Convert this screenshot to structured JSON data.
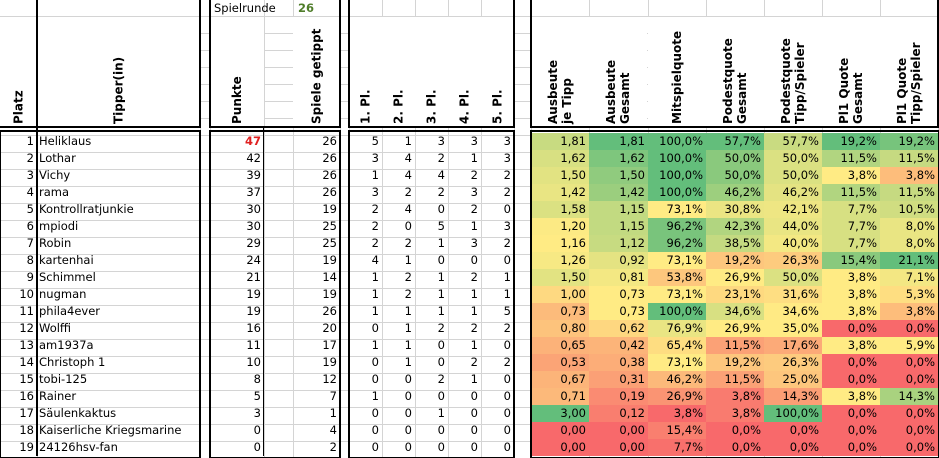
{
  "round": {
    "label": "Spielrunde",
    "value": "26",
    "value_color": "#4f7d2a"
  },
  "headers": {
    "platz": "Platz",
    "tipper": "Tipper(in)",
    "punkte": "Punkte",
    "spiele": "Spiele getippt",
    "places": [
      "1. Pl.",
      "2. Pl.",
      "3. Pl.",
      "4. Pl.",
      "5. Pl."
    ],
    "stats": [
      "Ausbeute\nje Tipp",
      "Ausbeute\nGesamt",
      "Mitspielquote",
      "Podestquote\nGesamt",
      "Podestquote\nTipp/Spieler",
      "Pl1 Quote\nGesamt",
      "Pl1 Quote\nTipp/Spieler"
    ]
  },
  "colors": {
    "min": "#f8696b",
    "mid": "#ffeb84",
    "max": "#63be7b",
    "leader_points": "#e02020"
  },
  "rows": [
    {
      "platz": "1",
      "name": "Heliklaus",
      "punkte": "47",
      "spiele": "26",
      "pl": [
        "5",
        "1",
        "3",
        "3",
        "3"
      ],
      "stats": [
        "1,81",
        "1,81",
        "100,0%",
        "57,7%",
        "57,7%",
        "19,2%",
        "19,2%"
      ]
    },
    {
      "platz": "2",
      "name": "Lothar",
      "punkte": "42",
      "spiele": "26",
      "pl": [
        "3",
        "4",
        "2",
        "1",
        "3"
      ],
      "stats": [
        "1,62",
        "1,62",
        "100,0%",
        "50,0%",
        "50,0%",
        "11,5%",
        "11,5%"
      ]
    },
    {
      "platz": "3",
      "name": "Vichy",
      "punkte": "39",
      "spiele": "26",
      "pl": [
        "1",
        "4",
        "4",
        "2",
        "2"
      ],
      "stats": [
        "1,50",
        "1,50",
        "100,0%",
        "50,0%",
        "50,0%",
        "3,8%",
        "3,8%"
      ]
    },
    {
      "platz": "4",
      "name": "rama",
      "punkte": "37",
      "spiele": "26",
      "pl": [
        "3",
        "2",
        "2",
        "3",
        "2"
      ],
      "stats": [
        "1,42",
        "1,42",
        "100,0%",
        "46,2%",
        "46,2%",
        "11,5%",
        "11,5%"
      ]
    },
    {
      "platz": "5",
      "name": "Kontrollratjunkie",
      "punkte": "30",
      "spiele": "19",
      "pl": [
        "2",
        "4",
        "0",
        "2",
        "0"
      ],
      "stats": [
        "1,58",
        "1,15",
        "73,1%",
        "30,8%",
        "42,1%",
        "7,7%",
        "10,5%"
      ]
    },
    {
      "platz": "6",
      "name": "mpiodi",
      "punkte": "30",
      "spiele": "25",
      "pl": [
        "2",
        "0",
        "5",
        "1",
        "3"
      ],
      "stats": [
        "1,20",
        "1,15",
        "96,2%",
        "42,3%",
        "44,0%",
        "7,7%",
        "8,0%"
      ]
    },
    {
      "platz": "7",
      "name": "Robin",
      "punkte": "29",
      "spiele": "25",
      "pl": [
        "2",
        "2",
        "1",
        "3",
        "2"
      ],
      "stats": [
        "1,16",
        "1,12",
        "96,2%",
        "38,5%",
        "40,0%",
        "7,7%",
        "8,0%"
      ]
    },
    {
      "platz": "8",
      "name": "kartenhai",
      "punkte": "24",
      "spiele": "19",
      "pl": [
        "4",
        "1",
        "0",
        "0",
        "0"
      ],
      "stats": [
        "1,26",
        "0,92",
        "73,1%",
        "19,2%",
        "26,3%",
        "15,4%",
        "21,1%"
      ]
    },
    {
      "platz": "9",
      "name": "Schimmel",
      "punkte": "21",
      "spiele": "14",
      "pl": [
        "1",
        "2",
        "1",
        "2",
        "1"
      ],
      "stats": [
        "1,50",
        "0,81",
        "53,8%",
        "26,9%",
        "50,0%",
        "3,8%",
        "7,1%"
      ]
    },
    {
      "platz": "10",
      "name": "nugman",
      "punkte": "19",
      "spiele": "19",
      "pl": [
        "1",
        "2",
        "1",
        "1",
        "1"
      ],
      "stats": [
        "1,00",
        "0,73",
        "73,1%",
        "23,1%",
        "31,6%",
        "3,8%",
        "5,3%"
      ]
    },
    {
      "platz": "11",
      "name": "phila4ever",
      "punkte": "19",
      "spiele": "26",
      "pl": [
        "1",
        "1",
        "1",
        "1",
        "5"
      ],
      "stats": [
        "0,73",
        "0,73",
        "100,0%",
        "34,6%",
        "34,6%",
        "3,8%",
        "3,8%"
      ]
    },
    {
      "platz": "12",
      "name": "Wolffi",
      "punkte": "16",
      "spiele": "20",
      "pl": [
        "0",
        "1",
        "2",
        "2",
        "2"
      ],
      "stats": [
        "0,80",
        "0,62",
        "76,9%",
        "26,9%",
        "35,0%",
        "0,0%",
        "0,0%"
      ]
    },
    {
      "platz": "13",
      "name": "am1937a",
      "punkte": "11",
      "spiele": "17",
      "pl": [
        "1",
        "1",
        "0",
        "1",
        "0"
      ],
      "stats": [
        "0,65",
        "0,42",
        "65,4%",
        "11,5%",
        "17,6%",
        "3,8%",
        "5,9%"
      ]
    },
    {
      "platz": "14",
      "name": "Christoph 1",
      "punkte": "10",
      "spiele": "19",
      "pl": [
        "0",
        "1",
        "0",
        "2",
        "2"
      ],
      "stats": [
        "0,53",
        "0,38",
        "73,1%",
        "19,2%",
        "26,3%",
        "0,0%",
        "0,0%"
      ]
    },
    {
      "platz": "15",
      "name": "tobi-125",
      "punkte": "8",
      "spiele": "12",
      "pl": [
        "0",
        "0",
        "2",
        "1",
        "0"
      ],
      "stats": [
        "0,67",
        "0,31",
        "46,2%",
        "11,5%",
        "25,0%",
        "0,0%",
        "0,0%"
      ]
    },
    {
      "platz": "16",
      "name": "Rainer",
      "punkte": "5",
      "spiele": "7",
      "pl": [
        "1",
        "0",
        "0",
        "0",
        "0"
      ],
      "stats": [
        "0,71",
        "0,19",
        "26,9%",
        "3,8%",
        "14,3%",
        "3,8%",
        "14,3%"
      ]
    },
    {
      "platz": "17",
      "name": "Säulenkaktus",
      "punkte": "3",
      "spiele": "1",
      "pl": [
        "0",
        "0",
        "1",
        "0",
        "0"
      ],
      "stats": [
        "3,00",
        "0,12",
        "3,8%",
        "3,8%",
        "100,0%",
        "0,0%",
        "0,0%"
      ]
    },
    {
      "platz": "18",
      "name": "Kaiserliche Kriegsmarine",
      "punkte": "0",
      "spiele": "4",
      "pl": [
        "0",
        "0",
        "0",
        "0",
        "0"
      ],
      "stats": [
        "0,00",
        "0,00",
        "15,4%",
        "0,0%",
        "0,0%",
        "0,0%",
        "0,0%"
      ]
    },
    {
      "platz": "19",
      "name": "24126hsv-fan",
      "punkte": "0",
      "spiele": "2",
      "pl": [
        "0",
        "0",
        "0",
        "0",
        "0"
      ],
      "stats": [
        "0,00",
        "0,00",
        "7,7%",
        "0,0%",
        "0,0%",
        "0,0%",
        "0,0%"
      ]
    }
  ]
}
